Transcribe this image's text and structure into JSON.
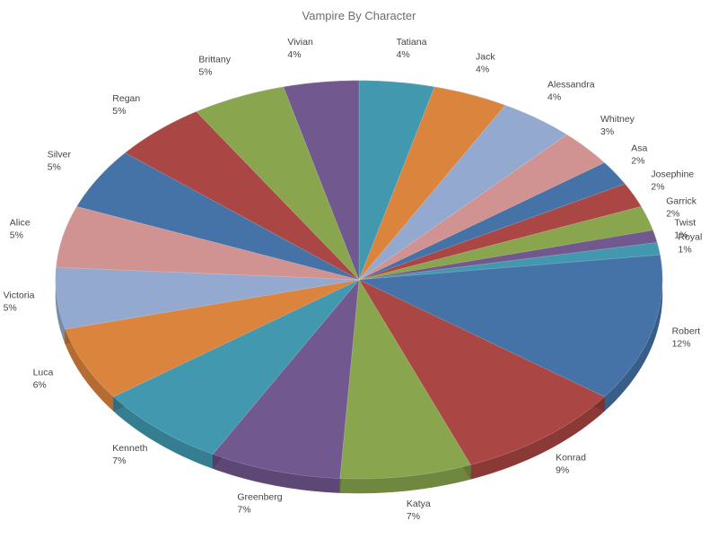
{
  "chart_data": {
    "type": "pie",
    "title": "Vampire By Character",
    "exploded": true,
    "three_d": true,
    "legend": "none",
    "slices": [
      {
        "label": "Tatiana",
        "value": 4,
        "display": "4%",
        "color": "#4198af"
      },
      {
        "label": "Jack",
        "value": 4,
        "display": "4%",
        "color": "#db843d"
      },
      {
        "label": "Alessandra",
        "value": 4,
        "display": "4%",
        "color": "#93a9cf"
      },
      {
        "label": "Whitney",
        "value": 3,
        "display": "3%",
        "color": "#d19392"
      },
      {
        "label": "Asa",
        "value": 2,
        "display": "2%",
        "color": "#4572a7"
      },
      {
        "label": "Josephine",
        "value": 2,
        "display": "2%",
        "color": "#aa4643"
      },
      {
        "label": "Garrick",
        "value": 2,
        "display": "2%",
        "color": "#89a54e"
      },
      {
        "label": "Twist",
        "value": 1,
        "display": "1%",
        "color": "#71588f"
      },
      {
        "label": "Royal",
        "value": 1,
        "display": "1%",
        "color": "#4198af"
      },
      {
        "label": "Robert",
        "value": 12,
        "display": "12%",
        "color": "#4572a7"
      },
      {
        "label": "Konrad",
        "value": 9,
        "display": "9%",
        "color": "#aa4643"
      },
      {
        "label": "Katya",
        "value": 7,
        "display": "7%",
        "color": "#89a54e"
      },
      {
        "label": "Greenberg",
        "value": 7,
        "display": "7%",
        "color": "#71588f"
      },
      {
        "label": "Kenneth",
        "value": 7,
        "display": "7%",
        "color": "#4198af"
      },
      {
        "label": "Luca",
        "value": 6,
        "display": "6%",
        "color": "#db843d"
      },
      {
        "label": "Victoria",
        "value": 5,
        "display": "5%",
        "color": "#93a9cf"
      },
      {
        "label": "Alice",
        "value": 5,
        "display": "5%",
        "color": "#d19392"
      },
      {
        "label": "Silver",
        "value": 5,
        "display": "5%",
        "color": "#4572a7"
      },
      {
        "label": "Regan",
        "value": 5,
        "display": "5%",
        "color": "#aa4643"
      },
      {
        "label": "Brittany",
        "value": 5,
        "display": "5%",
        "color": "#89a54e"
      },
      {
        "label": "Vivian",
        "value": 4,
        "display": "4%",
        "color": "#71588f"
      }
    ]
  }
}
